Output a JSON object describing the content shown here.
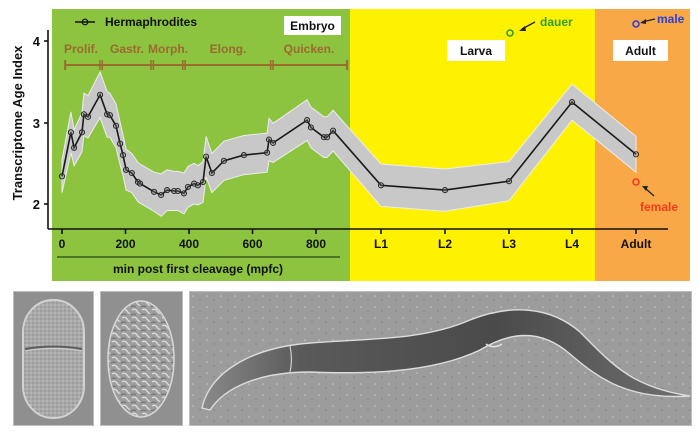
{
  "figure": {
    "caption_panels": [
      "2-cell embryo",
      "late embryo",
      "adult worm"
    ]
  },
  "colors": {
    "embryo_bg": "#8cc43f",
    "larva_bg": "#fff200",
    "adult_bg": "#f9a847",
    "band": "#c8c8c8",
    "band_edge": "#e6e6e6",
    "line": "#1a1a1a",
    "phase": "#9b6a2e",
    "dauer": "#2ca02c",
    "male": "#2a3fd4",
    "female": "#f23c1c"
  },
  "chart_data": {
    "type": "line",
    "title": "",
    "ylabel": "Transcriptome Age Index",
    "xlabel": "min post first cleavage (mpfc)",
    "ylim": [
      1.7,
      4.3
    ],
    "yticks": [
      2,
      3,
      4
    ],
    "legend": [
      {
        "label": "Hermaphrodites",
        "marker": "open-circle-line"
      }
    ],
    "stage_regions": [
      {
        "label": "Embryo",
        "color": "#8cc43f"
      },
      {
        "label": "Larva",
        "color": "#fff200"
      },
      {
        "label": "Adult",
        "color": "#f9a847"
      }
    ],
    "embryo_xticks": [
      0,
      200,
      400,
      600,
      800
    ],
    "stage_xticks": [
      "L1",
      "L2",
      "L3",
      "L4",
      "Adult"
    ],
    "embryo_phases": [
      {
        "label": "Prolif.",
        "start": 10,
        "end": 123
      },
      {
        "label": "Gastr.",
        "start": 123,
        "end": 284
      },
      {
        "label": "Morph.",
        "start": 284,
        "end": 384
      },
      {
        "label": "Elong.",
        "start": 384,
        "end": 661
      },
      {
        "label": "Quicken.",
        "start": 661,
        "end": 898
      }
    ],
    "series": [
      {
        "name": "Hermaphrodites",
        "embryo": {
          "x": [
            0,
            28,
            38,
            63,
            69,
            82,
            120,
            142,
            151,
            170,
            183,
            192,
            202,
            220,
            239,
            246,
            290,
            312,
            331,
            353,
            365,
            384,
            397,
            416,
            428,
            444,
            454,
            472,
            510,
            573,
            646,
            652,
            665,
            772,
            784,
            825,
            835,
            854
          ],
          "y": [
            2.34,
            2.88,
            2.69,
            2.88,
            3.1,
            3.07,
            3.34,
            3.1,
            3.09,
            2.96,
            2.74,
            2.6,
            2.42,
            2.38,
            2.27,
            2.25,
            2.15,
            2.11,
            2.17,
            2.16,
            2.16,
            2.13,
            2.21,
            2.25,
            2.23,
            2.27,
            2.58,
            2.38,
            2.53,
            2.6,
            2.63,
            2.79,
            2.75,
            3.03,
            2.94,
            2.82,
            2.82,
            2.9
          ],
          "band_halfwidth": [
            0.2,
            0.25,
            0.22,
            0.24,
            0.26,
            0.26,
            0.28,
            0.28,
            0.27,
            0.27,
            0.26,
            0.25,
            0.25,
            0.24,
            0.24,
            0.24,
            0.24,
            0.26,
            0.25,
            0.24,
            0.24,
            0.25,
            0.25,
            0.25,
            0.24,
            0.25,
            0.25,
            0.24,
            0.24,
            0.24,
            0.24,
            0.26,
            0.24,
            0.25,
            0.25,
            0.25,
            0.25,
            0.25
          ]
        },
        "stages": {
          "x": [
            "L1",
            "L2",
            "L3",
            "L4",
            "Adult"
          ],
          "y": [
            2.23,
            2.17,
            2.28,
            3.25,
            2.61
          ],
          "band_halfwidth": [
            0.26,
            0.26,
            0.24,
            0.22,
            0.22
          ]
        }
      }
    ],
    "extra_points": [
      {
        "label": "dauer",
        "stage_x": "L3",
        "y": 4.1
      },
      {
        "label": "male",
        "stage_x": "Adult",
        "y": 4.21
      },
      {
        "label": "female",
        "stage_x": "Adult",
        "y": 2.27
      }
    ]
  }
}
